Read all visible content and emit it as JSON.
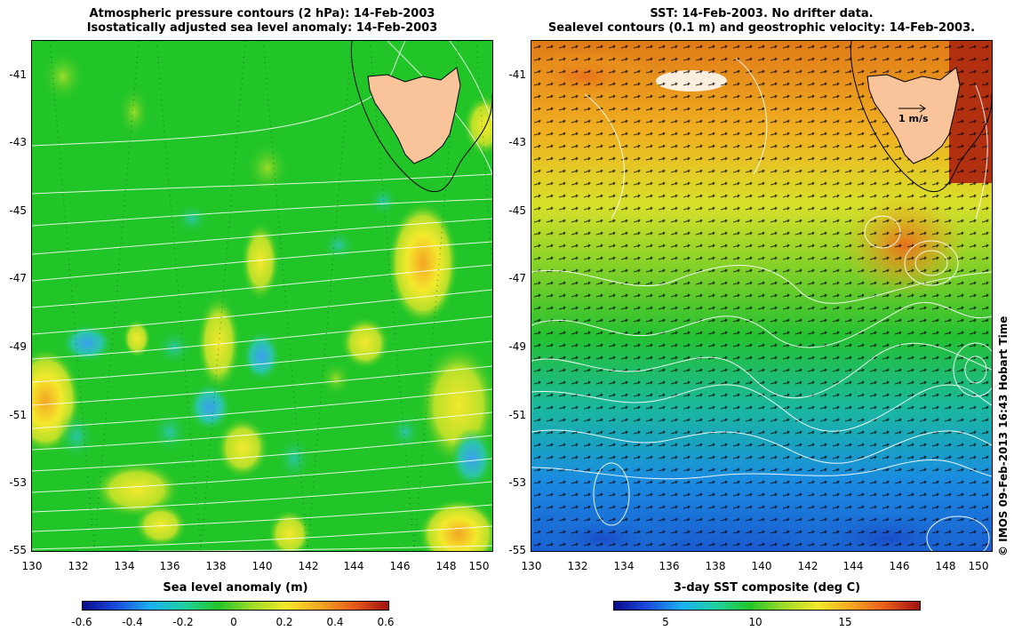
{
  "left_panel": {
    "title_line1": "Atmospheric pressure contours (2 hPa): 14-Feb-2003",
    "title_line2": "Isostatically adjusted sea level anomaly: 14-Feb-2003",
    "colorbar_title": "Sea level anomaly (m)",
    "colorbar_labels": [
      "-0.6",
      "-0.4",
      "-0.2",
      "0",
      "0.2",
      "0.4",
      "0.6"
    ]
  },
  "right_panel": {
    "title_line1": "SST: 14-Feb-2003. No drifter data.",
    "title_line2": "Sealevel contours (0.1 m) and geostrophic velocity: 14-Feb-2003.",
    "colorbar_title": "3-day SST composite (deg C)",
    "colorbar_labels": [
      "5",
      "10",
      "15"
    ],
    "velocity_scale_label": "1 m/s"
  },
  "axes": {
    "lat_ticks": [
      "-41",
      "-43",
      "-45",
      "-47",
      "-49",
      "-51",
      "-53",
      "-55"
    ],
    "lon_ticks": [
      "130",
      "132",
      "134",
      "136",
      "138",
      "140",
      "142",
      "144",
      "146",
      "148",
      "150"
    ]
  },
  "credit": "© IMOS 09-Feb-2013 16:43 Hobart Time",
  "colors": {
    "land": "#f9c49a",
    "sla_background": "#22c528",
    "sst_warm": "#e68a1a",
    "sst_cold": "#1a6ae8"
  }
}
